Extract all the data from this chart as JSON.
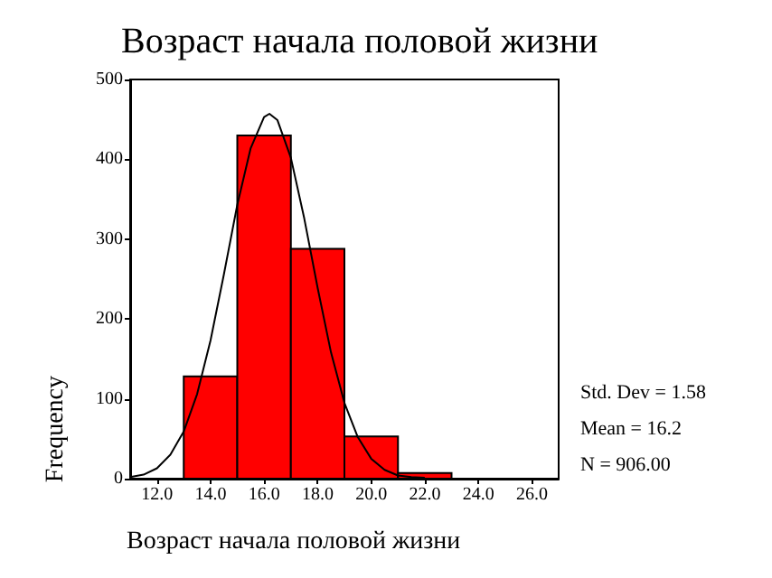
{
  "chart_data": {
    "type": "histogram",
    "title": "Возраст начала половой жизни",
    "xlabel": "Возраст начала половой жизни",
    "ylabel": "Frequency",
    "series": [
      {
        "bins": [
          13,
          15,
          17,
          19,
          21,
          23
        ],
        "values": [
          128,
          430,
          288,
          53,
          7
        ],
        "color": "#ff0000"
      },
      {
        "type": "line",
        "color": "#000000",
        "x": [
          11,
          11.5,
          12,
          12.5,
          13,
          13.5,
          14,
          14.5,
          15,
          15.5,
          16,
          16.2,
          16.5,
          17,
          17.5,
          18,
          18.5,
          19,
          19.5,
          20,
          20.5,
          21,
          21.5,
          22
        ],
        "values": [
          2,
          5,
          13,
          30,
          59,
          106,
          173,
          256,
          343,
          414,
          453,
          457,
          449,
          402,
          326,
          239,
          158,
          95,
          52,
          25,
          11,
          4,
          2,
          1
        ]
      }
    ],
    "xlim": [
      11,
      27
    ],
    "xticks": [
      {
        "value": 12,
        "label": "12.0"
      },
      {
        "value": 14,
        "label": "14.0"
      },
      {
        "value": 16,
        "label": "16.0"
      },
      {
        "value": 18,
        "label": "18.0"
      },
      {
        "value": 20,
        "label": "20.0"
      },
      {
        "value": 22,
        "label": "22.0"
      },
      {
        "value": 24,
        "label": "24.0"
      },
      {
        "value": 26,
        "label": "26.0"
      }
    ],
    "ylim": [
      0,
      500
    ],
    "yticks": [
      0,
      100,
      200,
      300,
      400,
      500
    ],
    "grid": false,
    "marker": "none",
    "annotations": [
      "Std. Dev = 1.58",
      "Mean = 16.2",
      "N = 906.00"
    ]
  }
}
